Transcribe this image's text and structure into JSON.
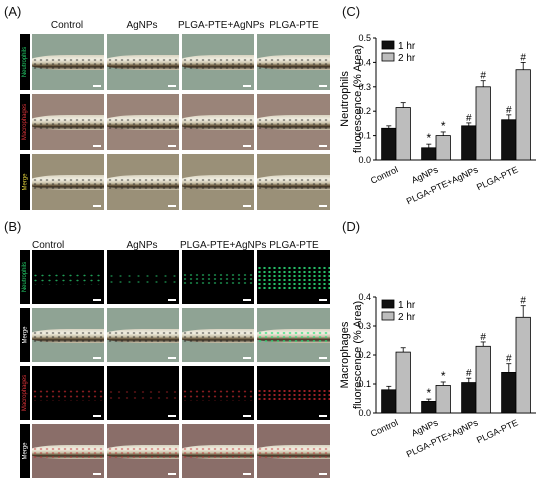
{
  "panels": {
    "A": "(A)",
    "B": "(B)",
    "C": "(C)",
    "D": "(D)"
  },
  "imaging": {
    "columns": [
      "Control",
      "AgNPs",
      "PLGA-PTE+AgNPs",
      "PLGA-PTE"
    ],
    "rows_A": [
      "Neutrophils",
      "Macrophages",
      "Merge"
    ],
    "rows_B": [
      "Neutrophils",
      "Merge",
      "Macrophages",
      "Merge"
    ],
    "colors": {
      "neutrophils": "#23d36b",
      "macrophages": "#e0343a",
      "merge": "#d9c93a"
    }
  },
  "chart_data": [
    {
      "type": "bar",
      "panel": "C",
      "ylabel": "Neutrophils\nfluorescence (% Area)",
      "ylim": [
        0,
        0.5
      ],
      "yticks": [
        "0.0",
        "0.1",
        "0.2",
        "0.3",
        "0.4",
        "0.5"
      ],
      "categories": [
        "Control",
        "AgNPs",
        "PLGA-PTE+AgNPs",
        "PLGA-PTE"
      ],
      "series": [
        {
          "name": "1 hr",
          "color": "#111111",
          "values": [
            0.13,
            0.05,
            0.14,
            0.165
          ],
          "errors": [
            0.01,
            0.015,
            0.012,
            0.02
          ],
          "marks": [
            "",
            "*",
            "#",
            "#"
          ]
        },
        {
          "name": "2 hr",
          "color": "#bdbdbd",
          "values": [
            0.215,
            0.1,
            0.3,
            0.37
          ],
          "errors": [
            0.02,
            0.015,
            0.025,
            0.03
          ],
          "marks": [
            "",
            "*",
            "#",
            "#"
          ]
        }
      ],
      "legend": "top-left"
    },
    {
      "type": "bar",
      "panel": "D",
      "ylabel": "Macrophages\nfluorescence (% Area)",
      "ylim": [
        0,
        0.4
      ],
      "yticks": [
        "0.0",
        "0.1",
        "0.2",
        "0.3",
        "0.4"
      ],
      "categories": [
        "Control",
        "AgNPs",
        "PLGA-PTE+AgNPs",
        "PLGA-PTE"
      ],
      "series": [
        {
          "name": "1 hr",
          "color": "#111111",
          "values": [
            0.08,
            0.04,
            0.105,
            0.14
          ],
          "errors": [
            0.012,
            0.008,
            0.015,
            0.03
          ],
          "marks": [
            "",
            "*",
            "#",
            "#"
          ]
        },
        {
          "name": "2 hr",
          "color": "#bdbdbd",
          "values": [
            0.21,
            0.095,
            0.23,
            0.33
          ],
          "errors": [
            0.015,
            0.012,
            0.015,
            0.04
          ],
          "marks": [
            "",
            "*",
            "#",
            "#"
          ]
        }
      ],
      "legend": "top-left"
    }
  ]
}
